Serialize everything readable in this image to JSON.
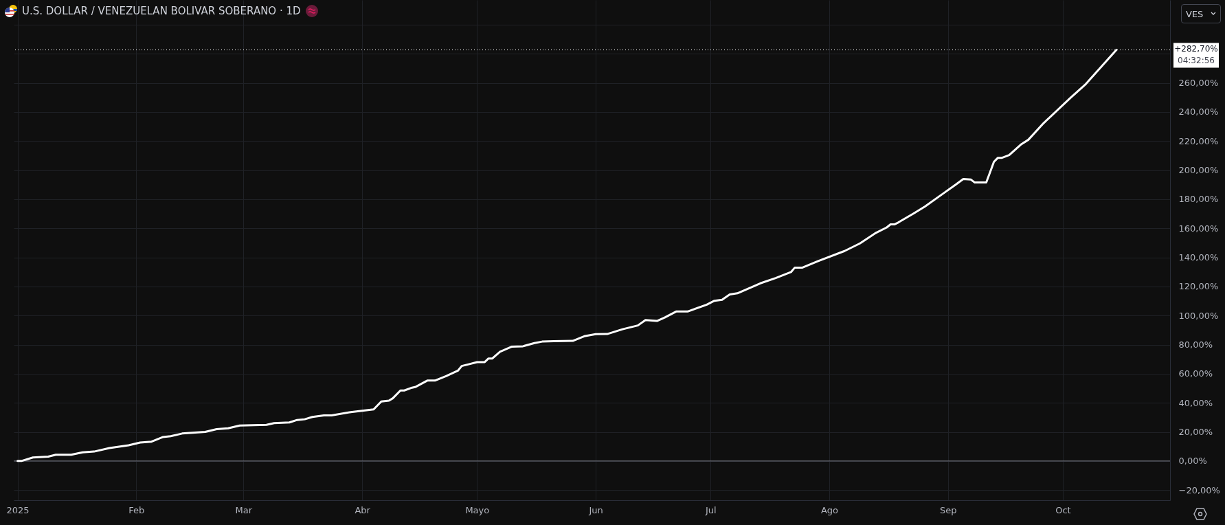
{
  "chart_data": {
    "type": "line",
    "title": "U.S. DOLLAR / VENEZUELAN BOLIVAR SOBERANO · 1D",
    "x": [
      "2025-01-01",
      "2025-01-02",
      "2025-01-05",
      "2025-01-09",
      "2025-01-11",
      "2025-01-15",
      "2025-01-18",
      "2025-01-21",
      "2025-01-25",
      "2025-01-30",
      "2025-02-02",
      "2025-02-05",
      "2025-02-08",
      "2025-02-10",
      "2025-02-13",
      "2025-02-19",
      "2025-02-22",
      "2025-02-25",
      "2025-02-28",
      "2025-03-07",
      "2025-03-09",
      "2025-03-13",
      "2025-03-15",
      "2025-03-17",
      "2025-03-19",
      "2025-03-22",
      "2025-03-24",
      "2025-03-29",
      "2025-04-04",
      "2025-04-06",
      "2025-04-08",
      "2025-04-09",
      "2025-04-11",
      "2025-04-12",
      "2025-04-14",
      "2025-04-15",
      "2025-04-18",
      "2025-04-20",
      "2025-04-23",
      "2025-04-26",
      "2025-04-27",
      "2025-04-29",
      "2025-05-01",
      "2025-05-03",
      "2025-05-04",
      "2025-05-05",
      "2025-05-07",
      "2025-05-10",
      "2025-05-13",
      "2025-05-16",
      "2025-05-18",
      "2025-05-21",
      "2025-05-26",
      "2025-05-29",
      "2025-06-01",
      "2025-06-04",
      "2025-06-08",
      "2025-06-12",
      "2025-06-14",
      "2025-06-17",
      "2025-06-19",
      "2025-06-22",
      "2025-06-25",
      "2025-06-30",
      "2025-07-02",
      "2025-07-04",
      "2025-07-06",
      "2025-07-08",
      "2025-07-14",
      "2025-07-18",
      "2025-07-22",
      "2025-07-23",
      "2025-07-25",
      "2025-07-29",
      "2025-08-05",
      "2025-08-09",
      "2025-08-13",
      "2025-08-16",
      "2025-08-17",
      "2025-08-18",
      "2025-08-19",
      "2025-08-23",
      "2025-08-26",
      "2025-08-31",
      "2025-09-03",
      "2025-09-05",
      "2025-09-07",
      "2025-09-08",
      "2025-09-11",
      "2025-09-13",
      "2025-09-14",
      "2025-09-15",
      "2025-09-17",
      "2025-09-20",
      "2025-09-22",
      "2025-09-26",
      "2025-10-03",
      "2025-10-07",
      "2025-10-15"
    ],
    "series": [
      {
        "color": "#ffffff",
        "values": [
          0,
          0,
          2.4,
          3.0,
          4.3,
          4.3,
          6.0,
          6.5,
          8.9,
          10.8,
          12.7,
          13.3,
          16.5,
          17.1,
          18.9,
          20.0,
          21.9,
          22.5,
          24.4,
          24.9,
          26.0,
          26.5,
          28.2,
          28.7,
          30.3,
          31.4,
          31.4,
          33.6,
          35.5,
          40.9,
          41.5,
          43.1,
          48.5,
          48.5,
          50.4,
          51.0,
          55.3,
          55.3,
          58.5,
          62.1,
          65.3,
          66.6,
          68.0,
          68.0,
          70.5,
          70.5,
          75.1,
          78.6,
          78.9,
          81.1,
          82.1,
          82.4,
          82.6,
          85.8,
          87.2,
          87.3,
          90.6,
          93.2,
          96.9,
          96.3,
          98.6,
          102.8,
          102.8,
          107.5,
          110.2,
          110.9,
          114.5,
          115.3,
          122.2,
          125.8,
          129.9,
          133.0,
          133.0,
          137.4,
          144.4,
          149.6,
          156.6,
          160.6,
          162.7,
          162.7,
          164.0,
          170.2,
          175.0,
          184.4,
          190.0,
          193.9,
          193.5,
          191.5,
          191.5,
          205.7,
          208.4,
          208.4,
          210.4,
          217.5,
          220.9,
          232.4,
          249.7,
          259.2,
          282.7
        ]
      }
    ],
    "xlim": [
      "2024-12-31",
      "2025-10-29"
    ],
    "xticks": [
      {
        "value": "2025-01-01",
        "label": "2025"
      },
      {
        "value": "2025-02-01",
        "label": "Feb"
      },
      {
        "value": "2025-03-01",
        "label": "Mar"
      },
      {
        "value": "2025-04-01",
        "label": "Abr"
      },
      {
        "value": "2025-05-01",
        "label": "Mayo"
      },
      {
        "value": "2025-06-01",
        "label": "Jun"
      },
      {
        "value": "2025-07-01",
        "label": "Jul"
      },
      {
        "value": "2025-08-01",
        "label": "Ago"
      },
      {
        "value": "2025-09-01",
        "label": "Sep"
      },
      {
        "value": "2025-10-01",
        "label": "Oct"
      }
    ],
    "ylim": [
      -27,
      317
    ],
    "yticks": [
      {
        "value": -20,
        "label": "−20,00%"
      },
      {
        "value": 0,
        "label": "0,00%"
      },
      {
        "value": 20,
        "label": "20,00%"
      },
      {
        "value": 40,
        "label": "40,00%"
      },
      {
        "value": 60,
        "label": "60,00%"
      },
      {
        "value": 80,
        "label": "80,00%"
      },
      {
        "value": 100,
        "label": "100,00%"
      },
      {
        "value": 120,
        "label": "120,00%"
      },
      {
        "value": 140,
        "label": "140,00%"
      },
      {
        "value": 160,
        "label": "160,00%"
      },
      {
        "value": 180,
        "label": "180,00%"
      },
      {
        "value": 200,
        "label": "200,00%"
      },
      {
        "value": 220,
        "label": "220,00%"
      },
      {
        "value": 240,
        "label": "240,00%"
      },
      {
        "value": 260,
        "label": "260,00%"
      },
      {
        "value": 280,
        "label": null
      },
      {
        "value": 300,
        "label": null
      }
    ],
    "ref_lines": [
      {
        "axis": "y",
        "value": 0,
        "color": "#787b86",
        "line_style": "solid"
      },
      {
        "axis": "y",
        "value": 282.7,
        "label": "+282,70%",
        "color": "#ffffff",
        "line_style": "dotted"
      }
    ],
    "annotations": [
      "04:32:56",
      "VES"
    ],
    "grid": true,
    "marker": "none",
    "line_style": "solid"
  }
}
